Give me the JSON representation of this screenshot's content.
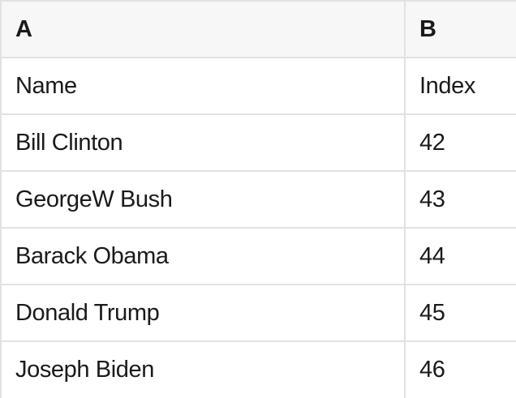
{
  "spreadsheet": {
    "columns": [
      {
        "label": "A"
      },
      {
        "label": "B"
      }
    ],
    "rows": [
      {
        "cells": [
          "Name",
          "Index"
        ]
      },
      {
        "cells": [
          "Bill Clinton",
          "42"
        ]
      },
      {
        "cells": [
          "GeorgeW Bush",
          "43"
        ]
      },
      {
        "cells": [
          "Barack Obama",
          "44"
        ]
      },
      {
        "cells": [
          "Donald Trump",
          "45"
        ]
      },
      {
        "cells": [
          "Joseph Biden",
          "46"
        ]
      }
    ]
  },
  "colors": {
    "header_bg": "#f7f7f7",
    "grid_border": "#e2e2e2",
    "cell_bg": "#ffffff",
    "text_color": "#1a1a1a"
  }
}
